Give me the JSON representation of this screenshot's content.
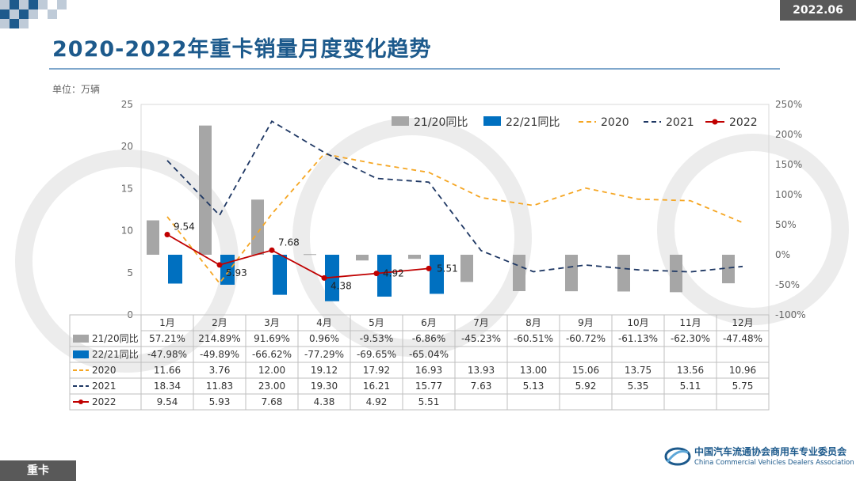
{
  "page": {
    "title": "2020-2022年重卡销量月度变化趋势",
    "date_badge": "2022.06",
    "unit_label": "单位：万辆",
    "footer_tag": "重卡",
    "org_cn": "中国汽车流通协会商用车专业委员会",
    "org_en": "China Commercial Vehicles Dealers Association"
  },
  "colors": {
    "bar_21_20": "#a6a6a6",
    "bar_22_21": "#0070c0",
    "line_2020": "#f5a623",
    "line_2021": "#1f3864",
    "line_2022": "#c00000",
    "title": "#1d5a8c"
  },
  "chart_data": {
    "type": "bar",
    "categories": [
      "1月",
      "2月",
      "3月",
      "4月",
      "5月",
      "6月",
      "7月",
      "8月",
      "9月",
      "10月",
      "11月",
      "12月"
    ],
    "y_left": {
      "ylim": [
        0,
        25
      ],
      "ticks": [
        "0",
        "5",
        "10",
        "15",
        "20",
        "25"
      ]
    },
    "y_right": {
      "ylim": [
        -100,
        250
      ],
      "ticks": [
        "-100%",
        "-50%",
        "0%",
        "50%",
        "100%",
        "150%",
        "200%",
        "250%"
      ]
    },
    "legend_position": "top",
    "series": [
      {
        "name": "21/20同比",
        "kind": "bar",
        "axis": "right",
        "values": [
          57.21,
          214.89,
          91.69,
          0.96,
          -9.53,
          -6.86,
          -45.23,
          -60.51,
          -60.72,
          -61.13,
          -62.3,
          -47.48
        ],
        "labels": [
          "57.21%",
          "214.89%",
          "91.69%",
          "0.96%",
          "-9.53%",
          "-6.86%",
          "-45.23%",
          "-60.51%",
          "-60.72%",
          "-61.13%",
          "-62.30%",
          "-47.48%"
        ]
      },
      {
        "name": "22/21同比",
        "kind": "bar",
        "axis": "right",
        "values": [
          -47.98,
          -49.89,
          -66.62,
          -77.29,
          -69.65,
          -65.04,
          null,
          null,
          null,
          null,
          null,
          null
        ],
        "labels": [
          "-47.98%",
          "-49.89%",
          "-66.62%",
          "-77.29%",
          "-69.65%",
          "-65.04%",
          "",
          "",
          "",
          "",
          "",
          ""
        ]
      },
      {
        "name": "2020",
        "kind": "line",
        "style": "dashed",
        "axis": "left",
        "values": [
          11.66,
          3.76,
          12.0,
          19.12,
          17.92,
          16.93,
          13.93,
          13.0,
          15.06,
          13.75,
          13.56,
          10.96
        ],
        "labels": [
          "11.66",
          "3.76",
          "12.00",
          "19.12",
          "17.92",
          "16.93",
          "13.93",
          "13.00",
          "15.06",
          "13.75",
          "13.56",
          "10.96"
        ]
      },
      {
        "name": "2021",
        "kind": "line",
        "style": "dashed",
        "axis": "left",
        "values": [
          18.34,
          11.83,
          23.0,
          19.3,
          16.21,
          15.77,
          7.63,
          5.13,
          5.92,
          5.35,
          5.11,
          5.75
        ],
        "labels": [
          "18.34",
          "11.83",
          "23.00",
          "19.30",
          "16.21",
          "15.77",
          "7.63",
          "5.13",
          "5.92",
          "5.35",
          "5.11",
          "5.75"
        ]
      },
      {
        "name": "2022",
        "kind": "line",
        "style": "solid-marker",
        "axis": "left",
        "values": [
          9.54,
          5.93,
          7.68,
          4.38,
          4.92,
          5.51,
          null,
          null,
          null,
          null,
          null,
          null
        ],
        "labels": [
          "9.54",
          "5.93",
          "7.68",
          "4.38",
          "4.92",
          "5.51",
          "",
          "",
          "",
          "",
          "",
          ""
        ]
      }
    ]
  }
}
